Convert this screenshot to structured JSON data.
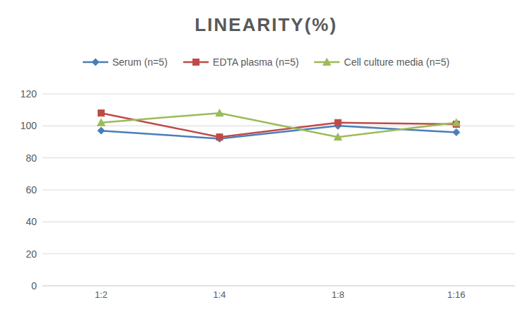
{
  "chart_data": {
    "type": "line",
    "title": "LINEARITY(%)",
    "categories": [
      "1:2",
      "1:4",
      "1:8",
      "1:16"
    ],
    "series": [
      {
        "name": "Serum (n=5)",
        "color": "#4a7ebb",
        "marker": "diamond",
        "values": [
          97,
          92,
          100,
          96
        ]
      },
      {
        "name": "EDTA plasma (n=5)",
        "color": "#be4b48",
        "marker": "square",
        "values": [
          108,
          93,
          102,
          101
        ]
      },
      {
        "name": "Cell culture media (n=5)",
        "color": "#9bbb59",
        "marker": "triangle",
        "values": [
          102,
          108,
          93,
          102
        ]
      }
    ],
    "ylim": [
      0,
      120
    ],
    "yticks": [
      0,
      20,
      40,
      60,
      80,
      100,
      120
    ],
    "grid": true,
    "legend": "top"
  }
}
